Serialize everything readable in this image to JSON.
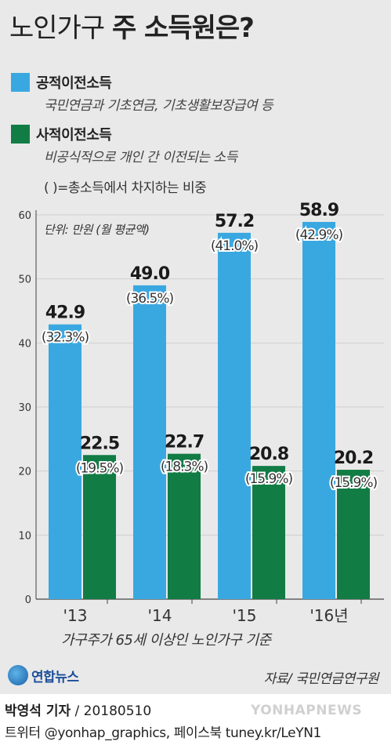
{
  "header": {
    "title_light": "노인가구",
    "title_bold": "주 소득원은?"
  },
  "legend": {
    "public": {
      "name": "공적이전소득",
      "desc": "국민연금과 기초연금, 기초생활보장급여 등",
      "color": "#3aa8e0"
    },
    "private": {
      "name": "사적이전소득",
      "desc": "비공식적으로 개인 간 이전되는 소득",
      "color": "#127c45"
    },
    "note": "( )=총소득에서 차지하는 비중",
    "unit": "단위: 만원 (월 평균액)"
  },
  "chart_data": {
    "type": "bar",
    "categories": [
      "'13",
      "'14",
      "'15",
      "'16년"
    ],
    "ylim": [
      0,
      60
    ],
    "yticks": [
      "0",
      "10",
      "20",
      "30",
      "40",
      "50",
      "60"
    ],
    "series": [
      {
        "name": "공적이전소득",
        "color": "#3aa8e0",
        "values": [
          42.9,
          49.0,
          57.2,
          58.9
        ],
        "value_labels": [
          "42.9",
          "49.0",
          "57.2",
          "58.9"
        ],
        "share_labels": [
          "(32.3%)",
          "(36.5%)",
          "(41.0%)",
          "(42.9%)"
        ]
      },
      {
        "name": "사적이전소득",
        "color": "#127c45",
        "values": [
          22.5,
          22.7,
          20.8,
          20.2
        ],
        "value_labels": [
          "22.5",
          "22.7",
          "20.8",
          "20.2"
        ],
        "share_labels": [
          "(19.5%)",
          "(18.3%)",
          "(15.9%)",
          "(15.9%)"
        ]
      }
    ]
  },
  "footer": {
    "note": "가구주가 65세 이상인 노인가구 기준",
    "logo": "연합뉴스",
    "source": "자료/ 국민연금연구원",
    "reporter": "박영석 기자",
    "date": "/ 20180510",
    "social": "트위터 @yonhap_graphics, 페이스북 tuney.kr/LeYN1",
    "watermark": "YONHAPNEWS"
  }
}
